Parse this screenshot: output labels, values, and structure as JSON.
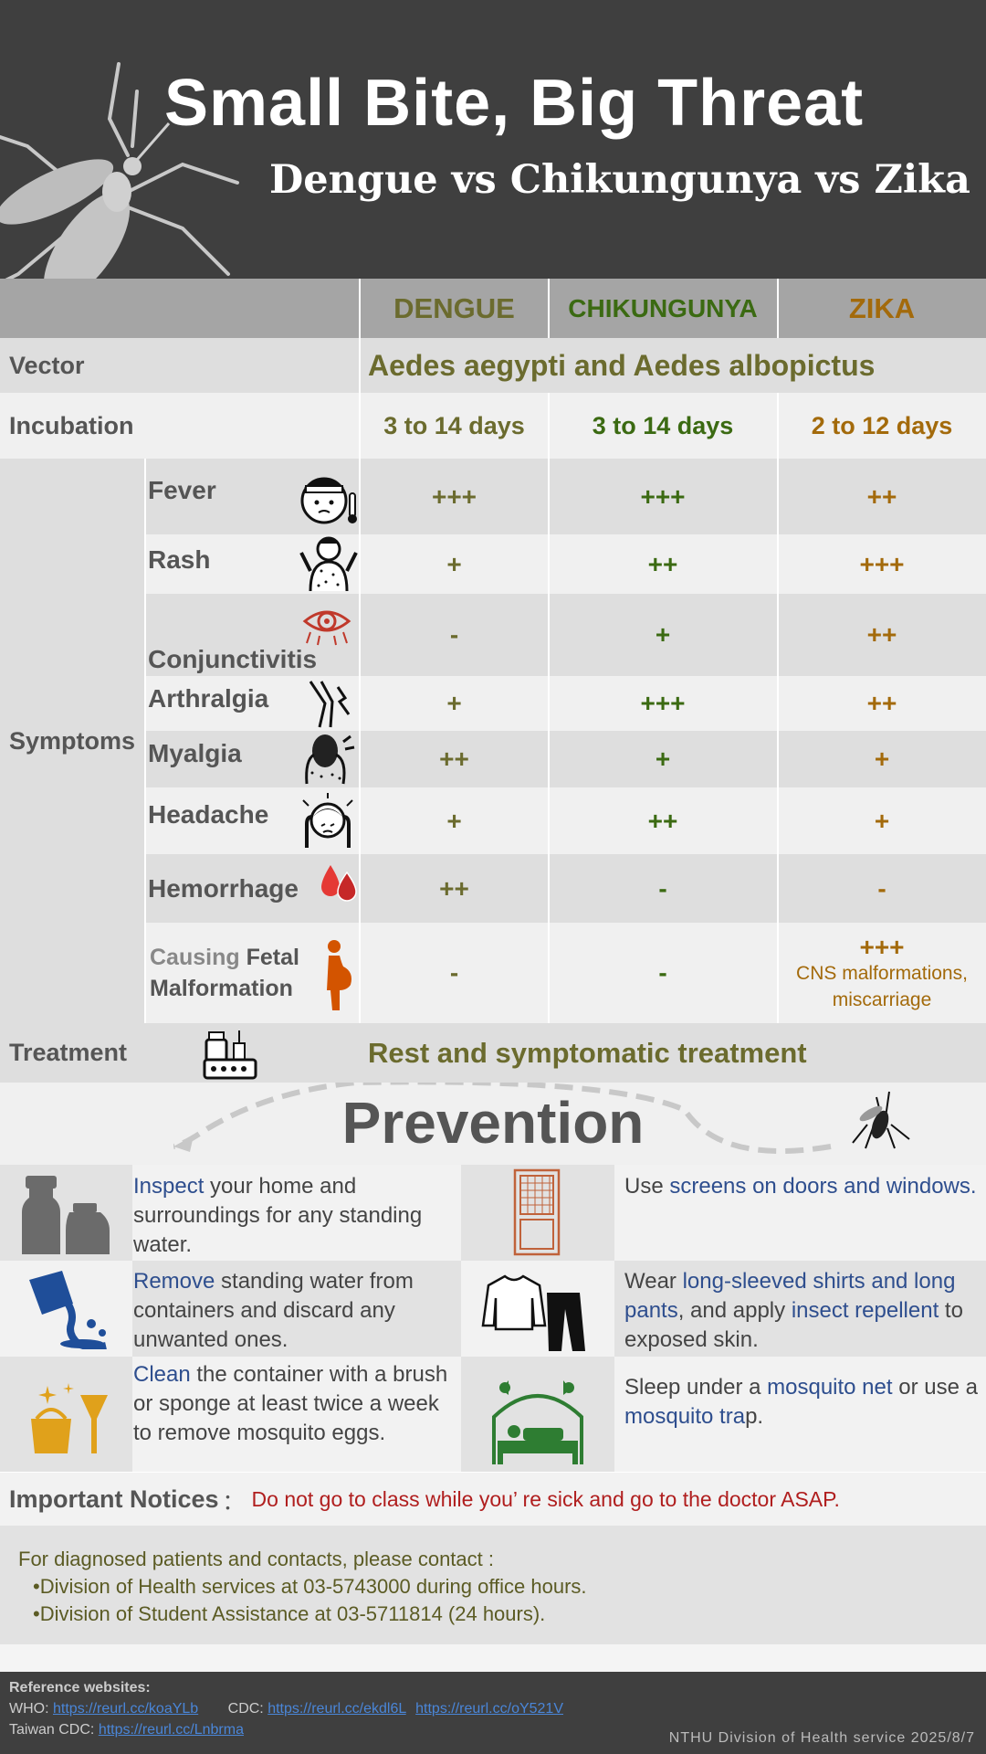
{
  "header": {
    "title": "Small Bite, Big Threat",
    "subtitle": "Dengue vs Chikungunya vs Zika"
  },
  "columns": {
    "dengue": "DENGUE",
    "chikungunya": "CHIKUNGUNYA",
    "zika": "ZIKA"
  },
  "vector": {
    "label": "Vector",
    "value": "Aedes aegypti and Aedes albopictus"
  },
  "incubation": {
    "label": "Incubation",
    "dengue": "3 to 14 days",
    "chikungunya": "3 to 14 days",
    "zika": "2 to 12 days"
  },
  "symptoms": {
    "label": "Symptoms",
    "rows": [
      {
        "name": "Fever",
        "icon": "fever-icon",
        "dengue": "+++",
        "chikungunya": "+++",
        "zika": "++"
      },
      {
        "name": "Rash",
        "icon": "rash-icon",
        "dengue": "+",
        "chikungunya": "++",
        "zika": "+++"
      },
      {
        "name": "Conjunctivitis",
        "icon": "eye-icon",
        "dengue": "-",
        "chikungunya": "+",
        "zika": "++"
      },
      {
        "name": "Arthralgia",
        "icon": "joint-icon",
        "dengue": "+",
        "chikungunya": "+++",
        "zika": "++"
      },
      {
        "name": "Myalgia",
        "icon": "muscle-icon",
        "dengue": "++",
        "chikungunya": "+",
        "zika": "+"
      },
      {
        "name": "Headache",
        "icon": "headache-icon",
        "dengue": "+",
        "chikungunya": "++",
        "zika": "+"
      },
      {
        "name": "Hemorrhage",
        "icon": "blood-drops-icon",
        "dengue": "++",
        "chikungunya": "-",
        "zika": "-"
      }
    ],
    "fetal": {
      "name_prefix": "Causing",
      "name_rest": "Fetal",
      "name_line2": "Malformation",
      "icon": "pregnant-icon",
      "dengue": "-",
      "chikungunya": "-",
      "zika": "+++",
      "zika_note_1": "CNS malformations,",
      "zika_note_2": "miscarriage"
    }
  },
  "treatment": {
    "label": "Treatment",
    "icon": "medicine-icon",
    "value": "Rest and symptomatic treatment"
  },
  "prevention": {
    "title": "Prevention",
    "items": [
      {
        "icon": "jars-icon",
        "highlight": "Inspect",
        "text": " your home and surroundings for any standing water."
      },
      {
        "icon": "door-screen-icon",
        "pre": " Use ",
        "highlight": "screens on doors and windows."
      },
      {
        "icon": "pouring-water-icon",
        "highlight": "Remove",
        "text": " standing water from containers and discard any unwanted ones."
      },
      {
        "icon": "clothes-icon",
        "pre": "Wear ",
        "highlight": "long-sleeved shirts and long pants",
        "mid": ", and apply ",
        "highlight2": "insect repellent",
        "post": " to exposed skin."
      },
      {
        "icon": "cleaning-bucket-icon",
        "highlight": "Clean",
        "text": " the container with a brush or sponge at least twice a week to remove mosquito eggs."
      },
      {
        "icon": "mosquito-net-bed-icon",
        "pre": "Sleep under a ",
        "highlight": "mosquito net",
        "mid": " or use a ",
        "highlight2": "mosquito tra",
        "post": "p."
      }
    ]
  },
  "notice": {
    "label": "Important Notices",
    "colon": "：",
    "text": "Do not go to class while you’ re sick and go to the doctor ASAP."
  },
  "contact": {
    "intro": "For diagnosed patients and contacts, please contact :",
    "line1": "•Division of Health services at 03-5743000 during office hours.",
    "line2": "•Division of Student Assistance at 03-5711814 (24 hours)."
  },
  "footer": {
    "heading": "Reference websites:",
    "who_label": "WHO: ",
    "who_link": "https://reurl.cc/koaYLb",
    "cdc_label": "CDC: ",
    "cdc_link1": "https://reurl.cc/ekdl6L",
    "cdc_link2": "https://reurl.cc/oY521V",
    "taiwan_label": "Taiwan CDC: ",
    "taiwan_link": "https://reurl.cc/Lnbrma",
    "credit": "NTHU Division of Health service 2025/8/7"
  },
  "colors": {
    "dengue": "#6b6b2e",
    "chikungunya": "#3b6a12",
    "zika": "#a36a0b",
    "highlight": "#2e4e8e",
    "notice": "#b01e1e"
  }
}
